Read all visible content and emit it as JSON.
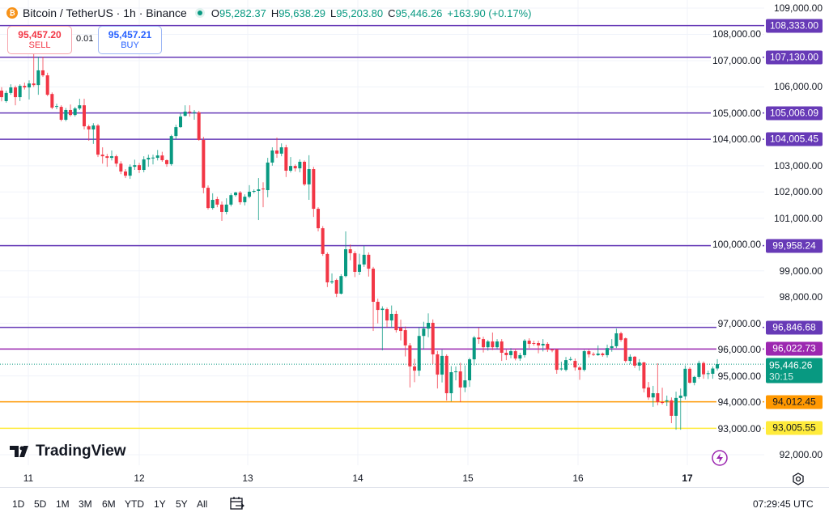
{
  "header": {
    "symbol_title": "Bitcoin / TetherUS · 1h · Binance",
    "open_label": "O",
    "open": "95,282.37",
    "high_label": "H",
    "high": "95,638.29",
    "low_label": "L",
    "low": "95,203.80",
    "close_label": "C",
    "close": "95,446.26",
    "change": "+163.90 (+0.17%)",
    "coin_icon": "bitcoin-icon"
  },
  "trade": {
    "sell_price": "95,457.20",
    "sell_label": "SELL",
    "quantity": "0.01",
    "buy_price": "95,457.21",
    "buy_label": "BUY"
  },
  "logo": "TradingView",
  "colors": {
    "up": "#089981",
    "down": "#f23645",
    "level": "#673ab7",
    "level_magenta": "#9c27b0",
    "level_orange": "#ff9800",
    "level_yellow": "#ffeb3b"
  },
  "chart_data": {
    "type": "candlestick",
    "interval": "1h",
    "ylim": [
      92000,
      109000
    ],
    "grid": true,
    "y_ticks": [
      "109,000.00",
      "108,000.00",
      "107,000.00",
      "106,000.00",
      "105,000.00",
      "104,000.00",
      "103,000.00",
      "102,000.00",
      "101,000.00",
      "100,000.00",
      "99,000.00",
      "98,000.00",
      "97,000.00",
      "96,000.00",
      "95,000.00",
      "94,000.00",
      "93,000.00",
      "92,000.00"
    ],
    "x_ticks": [
      "11",
      "12",
      "13",
      "14",
      "15",
      "16",
      "17"
    ],
    "horizontal_levels": [
      {
        "price": 108333.0,
        "label": "108,333.00",
        "color": "#673ab7"
      },
      {
        "price": 107130.0,
        "label": "107,130.00",
        "color": "#673ab7"
      },
      {
        "price": 105006.09,
        "label": "105,006.09",
        "color": "#673ab7"
      },
      {
        "price": 104005.45,
        "label": "104,005.45",
        "color": "#673ab7"
      },
      {
        "price": 99958.24,
        "label": "99,958.24",
        "color": "#673ab7"
      },
      {
        "price": 96846.68,
        "label": "96,846.68",
        "color": "#673ab7"
      },
      {
        "price": 96022.73,
        "label": "96,022.73",
        "color": "#9c27b0"
      },
      {
        "price": 94012.45,
        "label": "94,012.45",
        "color": "#ff9800"
      },
      {
        "price": 93005.55,
        "label": "93,005.55",
        "color": "#ffeb3b"
      }
    ],
    "current_price": {
      "price": 95446.26,
      "label": "95,446.26",
      "countdown": "30:15",
      "color": "#089981"
    },
    "candles_ohlc": [
      [
        105860,
        105990,
        105450,
        105610
      ],
      [
        105460,
        105860,
        105400,
        105770
      ],
      [
        105770,
        106100,
        105700,
        105980
      ],
      [
        105980,
        106050,
        105300,
        105610
      ],
      [
        105610,
        106100,
        105460,
        106040
      ],
      [
        106040,
        106160,
        105900,
        105980
      ],
      [
        105980,
        106250,
        105520,
        106130
      ],
      [
        106130,
        107270,
        106000,
        106070
      ],
      [
        106070,
        107150,
        105700,
        106630
      ],
      [
        106630,
        107150,
        106380,
        106440
      ],
      [
        106440,
        106540,
        105650,
        105700
      ],
      [
        105730,
        105790,
        105150,
        105210
      ],
      [
        105240,
        105360,
        105150,
        105270
      ],
      [
        105240,
        105300,
        104690,
        104750
      ],
      [
        104750,
        105200,
        104690,
        105120
      ],
      [
        105120,
        105330,
        104870,
        104930
      ],
      [
        104930,
        105240,
        104870,
        105180
      ],
      [
        105180,
        105550,
        105120,
        105300
      ],
      [
        105300,
        105550,
        104380,
        104500
      ],
      [
        104500,
        104560,
        103950,
        104380
      ],
      [
        104380,
        104620,
        103830,
        104530
      ],
      [
        104530,
        104590,
        103330,
        103420
      ],
      [
        103420,
        103700,
        103080,
        103360
      ],
      [
        103360,
        103450,
        102960,
        103300
      ],
      [
        103300,
        103580,
        103200,
        103360
      ],
      [
        103360,
        103420,
        102960,
        103080
      ],
      [
        103080,
        103170,
        102680,
        102780
      ],
      [
        102780,
        102870,
        102530,
        102620
      ],
      [
        102620,
        103050,
        102500,
        102960
      ],
      [
        102960,
        103230,
        102840,
        103020
      ],
      [
        103020,
        103110,
        102720,
        102840
      ],
      [
        102840,
        103360,
        102750,
        103240
      ],
      [
        103240,
        103420,
        102960,
        103300
      ],
      [
        103300,
        103420,
        103050,
        103310
      ],
      [
        103300,
        103600,
        103200,
        103390
      ],
      [
        103390,
        103530,
        103150,
        103210
      ],
      [
        103210,
        103240,
        102960,
        103060
      ],
      [
        103060,
        104180,
        103000,
        104130
      ],
      [
        104130,
        104560,
        104000,
        104470
      ],
      [
        104470,
        105000,
        104440,
        104870
      ],
      [
        104900,
        105300,
        104870,
        105060
      ],
      [
        105060,
        105300,
        104870,
        105030
      ],
      [
        105030,
        105120,
        104750,
        105040
      ],
      [
        105030,
        105090,
        103950,
        103980
      ],
      [
        103980,
        104100,
        101950,
        102160
      ],
      [
        102160,
        102250,
        101330,
        101390
      ],
      [
        101390,
        101950,
        101330,
        101700
      ],
      [
        101730,
        101820,
        101420,
        101520
      ],
      [
        101520,
        101640,
        100900,
        101240
      ],
      [
        101240,
        101760,
        101150,
        101520
      ],
      [
        101520,
        101950,
        101450,
        101880
      ],
      [
        101880,
        102010,
        101820,
        101980
      ],
      [
        101980,
        102040,
        101520,
        101610
      ],
      [
        101610,
        101910,
        101490,
        101820
      ],
      [
        101820,
        102260,
        101760,
        102010
      ],
      [
        102010,
        102100,
        101950,
        102040
      ],
      [
        102040,
        102530,
        100930,
        102100
      ],
      [
        102130,
        102370,
        101420,
        102100
      ],
      [
        102070,
        103300,
        101800,
        103120
      ],
      [
        103120,
        103700,
        103000,
        103580
      ],
      [
        103580,
        104070,
        103300,
        103460
      ],
      [
        103460,
        103850,
        103360,
        103700
      ],
      [
        103700,
        103800,
        102570,
        102810
      ],
      [
        102810,
        103330,
        102740,
        102990
      ],
      [
        102990,
        103050,
        102780,
        102900
      ],
      [
        102900,
        103240,
        102750,
        103150
      ],
      [
        103150,
        103200,
        102230,
        102290
      ],
      [
        102290,
        103400,
        101700,
        102870
      ],
      [
        102870,
        102960,
        101050,
        101360
      ],
      [
        101360,
        101420,
        100500,
        100620
      ],
      [
        100620,
        100700,
        99570,
        99640
      ],
      [
        99640,
        99700,
        98380,
        98560
      ],
      [
        98560,
        98900,
        98500,
        98600
      ],
      [
        98650,
        98700,
        98000,
        98130
      ],
      [
        98130,
        98870,
        98100,
        98800
      ],
      [
        98800,
        100500,
        98750,
        99820
      ],
      [
        99820,
        100000,
        99400,
        99670
      ],
      [
        99670,
        99750,
        98760,
        98960
      ],
      [
        98960,
        99650,
        98840,
        99240
      ],
      [
        99240,
        99950,
        99150,
        99610
      ],
      [
        99610,
        99700,
        98780,
        99080
      ],
      [
        99080,
        99150,
        96710,
        97820
      ],
      [
        97820,
        97940,
        97000,
        97510
      ],
      [
        97510,
        97650,
        95970,
        97560
      ],
      [
        97540,
        97600,
        96850,
        97110
      ],
      [
        97110,
        97680,
        96850,
        97360
      ],
      [
        97360,
        97480,
        96650,
        96740
      ],
      [
        96830,
        97140,
        96350,
        96710
      ],
      [
        96740,
        96880,
        95740,
        96160
      ],
      [
        96160,
        96250,
        94560,
        95360
      ],
      [
        95360,
        95650,
        94760,
        95200
      ],
      [
        95200,
        96850,
        94990,
        96520
      ],
      [
        96520,
        97060,
        96000,
        96800
      ],
      [
        96800,
        97380,
        96470,
        97020
      ],
      [
        97020,
        97150,
        95450,
        95820
      ],
      [
        95820,
        95950,
        94520,
        95050
      ],
      [
        95050,
        96000,
        94750,
        95760
      ],
      [
        95760,
        95820,
        94060,
        94340
      ],
      [
        94340,
        95370,
        94030,
        95140
      ],
      [
        95140,
        95360,
        94830,
        95170
      ],
      [
        95170,
        95500,
        94000,
        94560
      ],
      [
        94560,
        95400,
        94380,
        94830
      ],
      [
        94830,
        95690,
        94580,
        95630
      ],
      [
        95630,
        96520,
        95400,
        96460
      ],
      [
        96460,
        96830,
        96220,
        96400
      ],
      [
        96400,
        96490,
        95890,
        96090
      ],
      [
        96090,
        96370,
        95960,
        96310
      ],
      [
        96310,
        96650,
        95980,
        96090
      ],
      [
        96090,
        96400,
        96000,
        96310
      ],
      [
        96310,
        96400,
        95570,
        95880
      ],
      [
        95880,
        96000,
        95600,
        95790
      ],
      [
        95790,
        96060,
        95670,
        95940
      ],
      [
        95940,
        96030,
        95590,
        95660
      ],
      [
        95660,
        95880,
        95570,
        95790
      ],
      [
        95790,
        96400,
        95700,
        96340
      ],
      [
        96340,
        96430,
        96060,
        96220
      ],
      [
        96250,
        96340,
        96150,
        96240
      ],
      [
        96250,
        96340,
        95860,
        96160
      ],
      [
        96160,
        96400,
        95930,
        96220
      ],
      [
        96220,
        96280,
        95910,
        96000
      ],
      [
        96000,
        96030,
        95900,
        95970
      ],
      [
        96000,
        96030,
        95080,
        95230
      ],
      [
        95260,
        95540,
        95200,
        95280
      ],
      [
        95230,
        95720,
        95170,
        95600
      ],
      [
        95630,
        95730,
        95570,
        95640
      ],
      [
        95570,
        95660,
        95200,
        95320
      ],
      [
        95320,
        95380,
        94850,
        95230
      ],
      [
        95230,
        95990,
        95170,
        95940
      ],
      [
        95940,
        96000,
        95700,
        95820
      ],
      [
        95830,
        95900,
        95760,
        95820
      ],
      [
        95790,
        96160,
        95760,
        95850
      ],
      [
        95850,
        95890,
        95730,
        95790
      ],
      [
        95790,
        96190,
        95700,
        96060
      ],
      [
        96060,
        96400,
        95920,
        96130
      ],
      [
        96130,
        96800,
        96060,
        96620
      ],
      [
        96620,
        96680,
        96300,
        96370
      ],
      [
        96430,
        96460,
        95510,
        95570
      ],
      [
        95570,
        95820,
        95450,
        95730
      ],
      [
        95730,
        95760,
        95300,
        95390
      ],
      [
        95390,
        95640,
        95200,
        95510
      ],
      [
        95510,
        95540,
        94370,
        94520
      ],
      [
        94560,
        94770,
        94090,
        94180
      ],
      [
        94180,
        94620,
        93820,
        94340
      ],
      [
        94340,
        95480,
        93880,
        94000
      ],
      [
        94000,
        94550,
        93910,
        93970
      ],
      [
        94030,
        94250,
        93850,
        94070
      ],
      [
        94070,
        94180,
        93200,
        93480
      ],
      [
        93480,
        94400,
        92950,
        94160
      ],
      [
        94160,
        94520,
        92950,
        94250
      ],
      [
        94220,
        95400,
        94100,
        95270
      ],
      [
        95270,
        95330,
        94700,
        94740
      ],
      [
        94740,
        95000,
        94640,
        94960
      ],
      [
        94960,
        95580,
        94890,
        95490
      ],
      [
        95490,
        95550,
        94890,
        95060
      ],
      [
        95080,
        95200,
        94880,
        95100
      ],
      [
        95080,
        95360,
        94890,
        95280
      ],
      [
        95282.37,
        95638.29,
        95203.8,
        95446.26
      ]
    ]
  },
  "toolbar": {
    "timeframes": [
      "1D",
      "5D",
      "1M",
      "3M",
      "6M",
      "YTD",
      "1Y",
      "5Y",
      "All"
    ],
    "calendar_icon": "calendar-range-icon",
    "clock": "07:29:45 UTC",
    "settings_icon": "settings-icon"
  }
}
